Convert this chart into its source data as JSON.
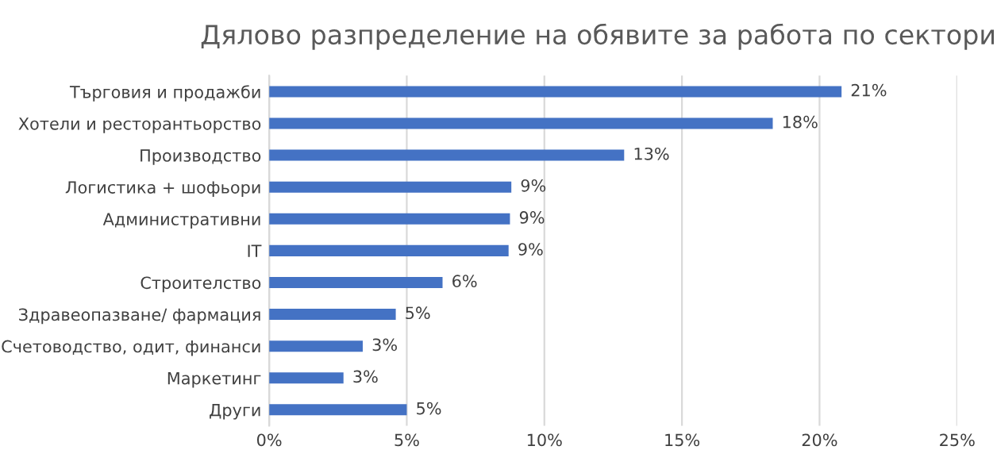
{
  "chart_data": {
    "type": "bar",
    "orientation": "horizontal",
    "title": "Дялово разпределение на обявите за работа по сектори",
    "categories": [
      "Търговия и продажби",
      "Хотели и ресторантьорство",
      "Производство",
      "Логистика + шофьори",
      "Административни",
      "IT",
      "Строителство",
      "Здравеопазване/ фармация",
      "Счетоводство, одит, финанси",
      "Маркетинг",
      "Други"
    ],
    "values": [
      20.8,
      18.3,
      12.9,
      8.8,
      8.75,
      8.7,
      6.3,
      4.6,
      3.4,
      2.7,
      5.0
    ],
    "value_labels": [
      "21%",
      "18%",
      "13%",
      "9%",
      "9%",
      "9%",
      "6%",
      "5%",
      "3%",
      "3%",
      "5%"
    ],
    "color": "#4472c4",
    "xlim": [
      0,
      25
    ],
    "xticks": [
      {
        "value": 0,
        "label": "0%"
      },
      {
        "value": 5,
        "label": "5%"
      },
      {
        "value": 10,
        "label": "10%"
      },
      {
        "value": 15,
        "label": "15%"
      },
      {
        "value": 20,
        "label": "20%"
      },
      {
        "value": 25,
        "label": "25%"
      }
    ],
    "grid": "x",
    "legend": false
  }
}
